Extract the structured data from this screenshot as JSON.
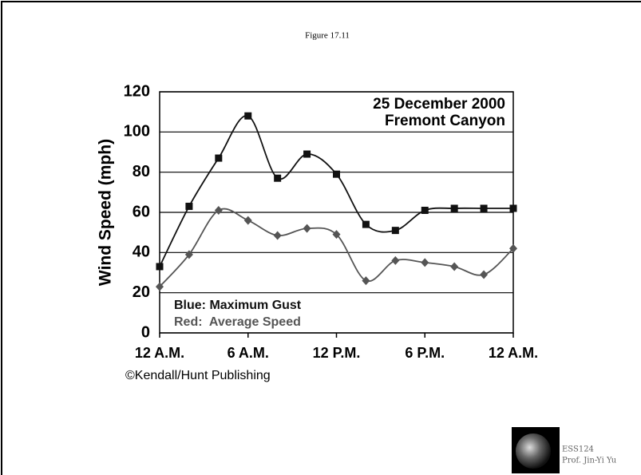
{
  "figure_label": "Figure 17.11",
  "chart_data": {
    "type": "line",
    "title_lines": [
      "25 December 2000",
      "Fremont Canyon"
    ],
    "y_label": "Wind Speed (mph)",
    "source": "©Kendall/Hunt Publishing",
    "xlim": [
      0,
      24
    ],
    "xticks": [
      {
        "value": 0,
        "label": "12 A.M."
      },
      {
        "value": 6,
        "label": "6 A.M."
      },
      {
        "value": 12,
        "label": "12 P.M."
      },
      {
        "value": 18,
        "label": "6 P.M."
      },
      {
        "value": 24,
        "label": "12 A.M."
      }
    ],
    "ylim": [
      0,
      120
    ],
    "yticks": [
      0,
      20,
      40,
      60,
      80,
      100,
      120
    ],
    "grid": true,
    "x": [
      0,
      2,
      4,
      6,
      8,
      10,
      12,
      14,
      16,
      18,
      20,
      22,
      24
    ],
    "series": [
      {
        "name": "Blue: Maximum Gust",
        "color": "#111111",
        "marker": "square",
        "values": [
          33,
          63,
          87,
          108,
          77,
          89,
          79,
          54,
          51,
          61,
          62,
          62,
          62
        ]
      },
      {
        "name": "Red:  Average Speed",
        "color": "#555555",
        "marker": "diamond",
        "values": [
          23,
          39,
          61,
          56,
          48.5,
          52,
          49,
          26,
          36,
          35,
          33,
          29,
          42
        ]
      }
    ]
  },
  "footer": {
    "course": "ESS124",
    "author": "Prof. Jin-Yi Yu"
  }
}
